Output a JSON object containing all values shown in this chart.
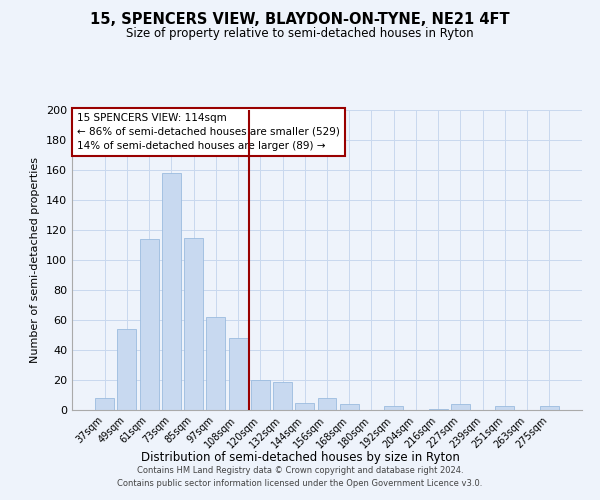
{
  "title": "15, SPENCERS VIEW, BLAYDON-ON-TYNE, NE21 4FT",
  "subtitle": "Size of property relative to semi-detached houses in Ryton",
  "xlabel": "Distribution of semi-detached houses by size in Ryton",
  "ylabel": "Number of semi-detached properties",
  "bar_color": "#c8d9f0",
  "bar_edge_color": "#9bbcdf",
  "categories": [
    "37sqm",
    "49sqm",
    "61sqm",
    "73sqm",
    "85sqm",
    "97sqm",
    "108sqm",
    "120sqm",
    "132sqm",
    "144sqm",
    "156sqm",
    "168sqm",
    "180sqm",
    "192sqm",
    "204sqm",
    "216sqm",
    "227sqm",
    "239sqm",
    "251sqm",
    "263sqm",
    "275sqm"
  ],
  "values": [
    8,
    54,
    114,
    158,
    115,
    62,
    48,
    20,
    19,
    5,
    8,
    4,
    0,
    3,
    0,
    1,
    4,
    0,
    3,
    0,
    3
  ],
  "ylim": [
    0,
    200
  ],
  "yticks": [
    0,
    20,
    40,
    60,
    80,
    100,
    120,
    140,
    160,
    180,
    200
  ],
  "property_line_x": 6.5,
  "annotation_text_line1": "15 SPENCERS VIEW: 114sqm",
  "annotation_text_line2": "← 86% of semi-detached houses are smaller (529)",
  "annotation_text_line3": "14% of semi-detached houses are larger (89) →",
  "grid_color": "#c8d8ee",
  "footer_line1": "Contains HM Land Registry data © Crown copyright and database right 2024.",
  "footer_line2": "Contains public sector information licensed under the Open Government Licence v3.0.",
  "background_color": "#eef3fb"
}
